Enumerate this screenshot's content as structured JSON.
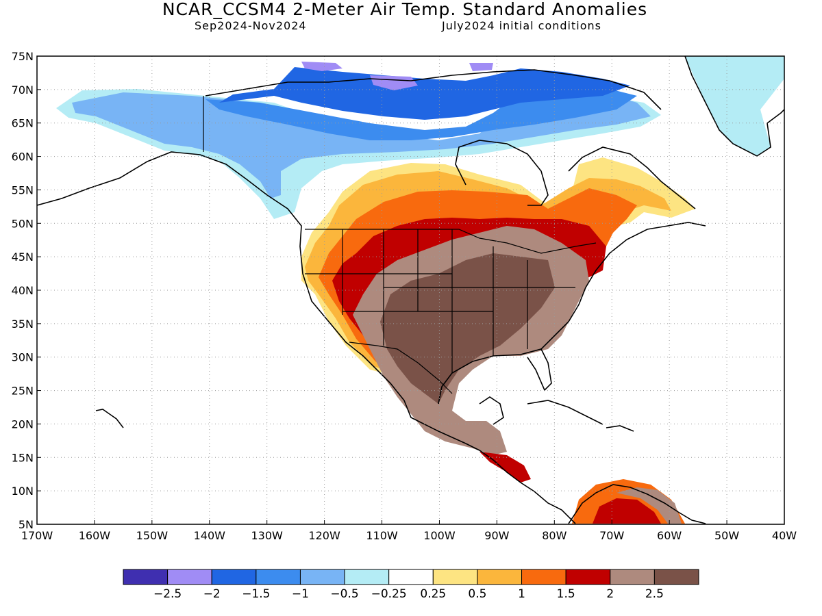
{
  "title": "NCAR_CCSM4 2-Meter Air Temp. Standard Anomalies",
  "period": "Sep2024-Nov2024",
  "init": "July2024 initial conditions",
  "map": {
    "lon_range": [
      -170,
      -40
    ],
    "lat_range": [
      5,
      75
    ],
    "lat_ticks": [
      "75N",
      "70N",
      "65N",
      "60N",
      "55N",
      "50N",
      "45N",
      "40N",
      "35N",
      "30N",
      "25N",
      "20N",
      "15N",
      "10N",
      "5N"
    ],
    "lon_ticks": [
      "170W",
      "160W",
      "150W",
      "140W",
      "130W",
      "120W",
      "110W",
      "100W",
      "90W",
      "80W",
      "70W",
      "60W",
      "50W",
      "40W"
    ],
    "grid": true
  },
  "colorbar": {
    "colors": [
      "#3f2fb0",
      "#a08cf5",
      "#2066e3",
      "#3c8cef",
      "#78b4f5",
      "#b4ecf5",
      "#ffffff",
      "#fde482",
      "#fbb63c",
      "#f86a0e",
      "#c00000",
      "#ae8a7e",
      "#7a5248"
    ],
    "labels": [
      "-2.5",
      "-2",
      "-1.5",
      "-1",
      "-0.5",
      "-0.25",
      "0.25",
      "0.5",
      "1",
      "1.5",
      "2",
      "2.5"
    ]
  }
}
